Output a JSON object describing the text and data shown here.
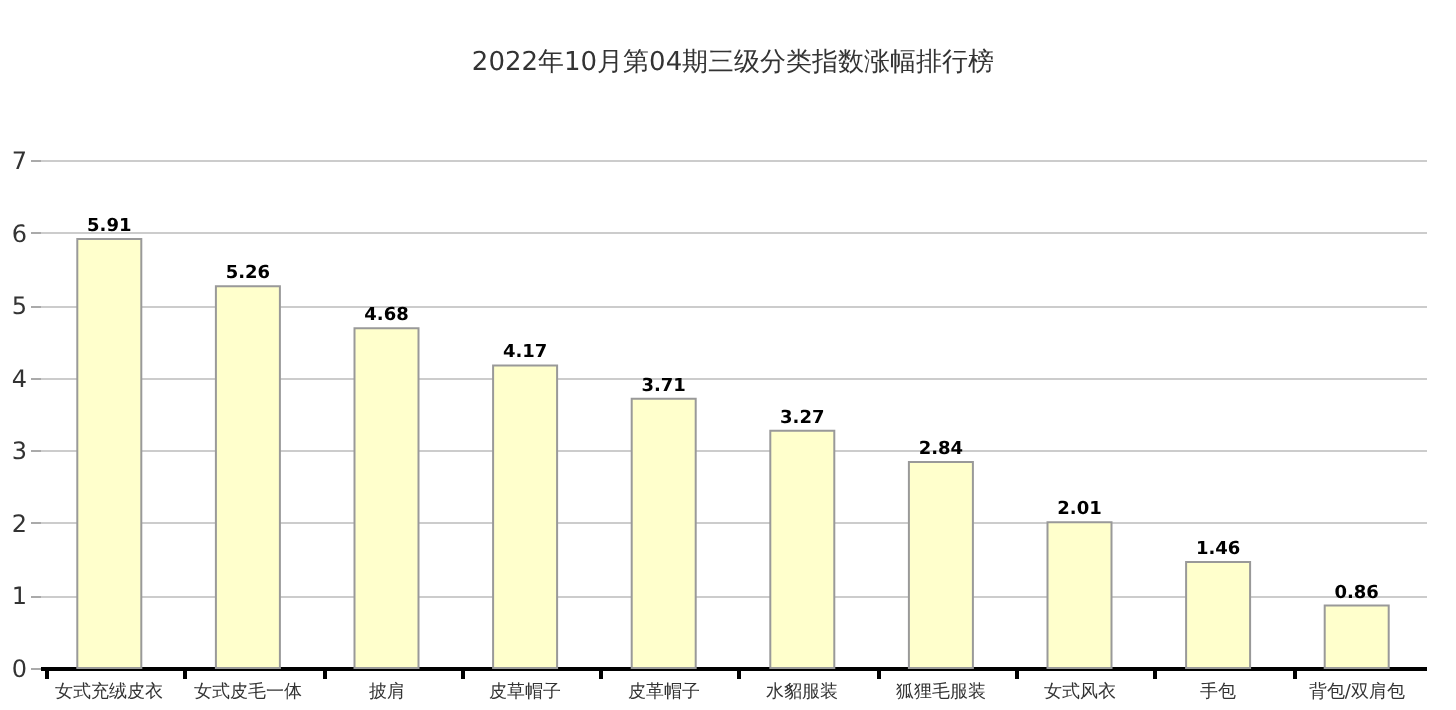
{
  "chart_data": {
    "type": "bar",
    "title": "2022年10月第04期三级分类指数涨幅排行榜",
    "categories": [
      "女式充绒皮衣",
      "女式皮毛一体",
      "披肩",
      "皮草帽子",
      "皮革帽子",
      "水貂服装",
      "狐狸毛服装",
      "女式风衣",
      "手包",
      "背包/双肩包"
    ],
    "values": [
      5.91,
      5.26,
      4.68,
      4.17,
      3.71,
      3.27,
      2.84,
      2.01,
      1.46,
      0.86
    ],
    "color": "#ffffcc",
    "ylim": [
      0,
      7
    ],
    "yticks": [
      0,
      1,
      2,
      3,
      4,
      5,
      6,
      7
    ],
    "grid": "y",
    "data_labels": true
  }
}
